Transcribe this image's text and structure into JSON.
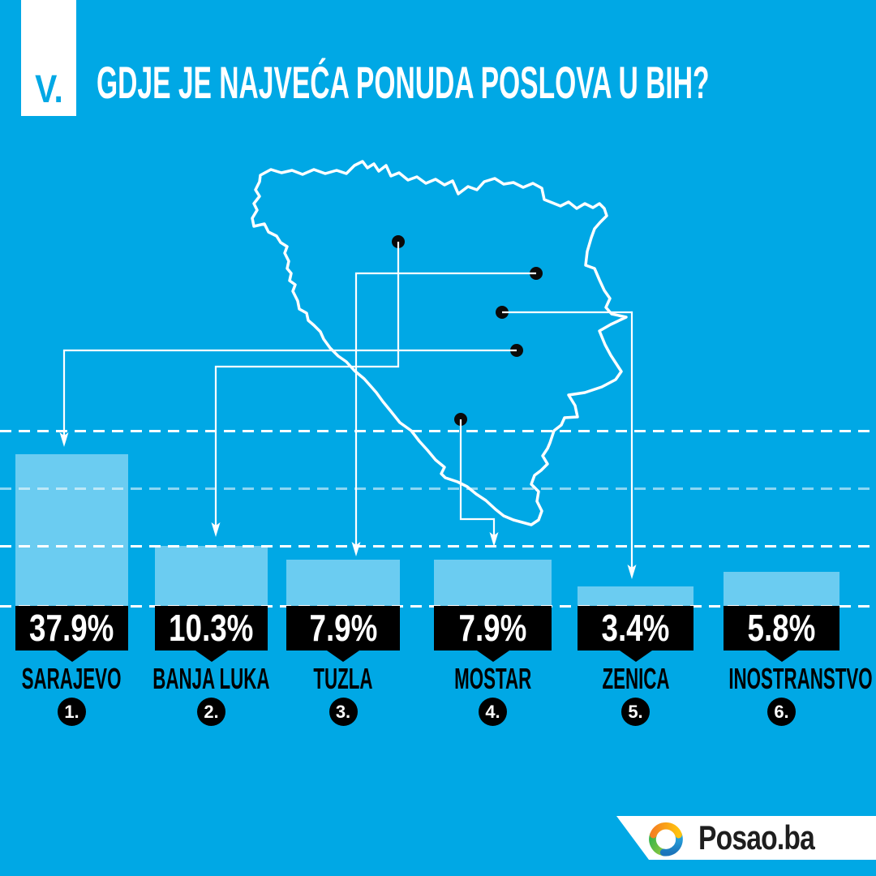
{
  "page": {
    "background_color": "#00A8E5",
    "bar_color": "#6BCCF1",
    "line_color": "#FFFFFF",
    "label_box_color": "#000000"
  },
  "header": {
    "index_label": "V.",
    "title": "GDJE JE NAJVEĆA PONUDA POSLOVA U BIH?"
  },
  "chart_data": {
    "type": "bar",
    "title": "GDJE JE NAJVEĆA PONUDA POSLOVA U BIH?",
    "unit": "%",
    "categories": [
      "SARAJEVO",
      "BANJA LUKA",
      "TUZLA",
      "MOSTAR",
      "ZENICA",
      "INOSTRANSTVO"
    ],
    "values": [
      37.9,
      10.3,
      7.9,
      7.9,
      3.4,
      5.8
    ],
    "value_labels": [
      "37.9%",
      "10.3%",
      "7.9%",
      "7.9%",
      "3.4%",
      "5.8%"
    ],
    "rank_labels": [
      "1.",
      "2.",
      "3.",
      "4.",
      "5.",
      "6."
    ],
    "map_dot_cities": [
      "BANJA LUKA",
      "TUZLA",
      "ZENICA",
      "SARAJEVO",
      "MOSTAR"
    ],
    "grid": "horizontal dashed white lines",
    "legend": false
  },
  "footer": {
    "brand": "Posao.ba"
  }
}
